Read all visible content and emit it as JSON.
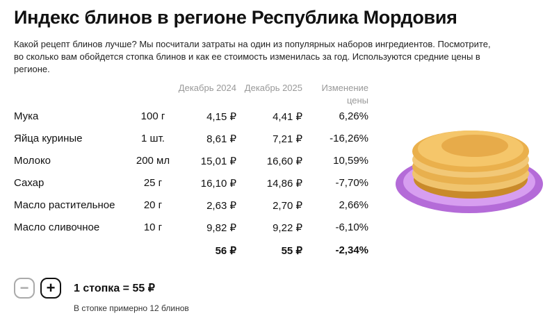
{
  "title": "Индекс блинов в регионе Республика Мордовия",
  "description": "Какой рецепт блинов лучше? Мы посчитали затраты на один из популярных наборов ингредиентов. Посмотрите, во сколько вам обойдется стопка блинов и как ее стоимость изменилась за год. Используются средние цены в регионе.",
  "columns": {
    "dec2024": "Декабрь 2024",
    "dec2025": "Декабрь 2025",
    "change": "Изменение цены"
  },
  "rows": [
    {
      "name": "Мука",
      "qty": "100 г",
      "dec2024": "4,15 ₽",
      "dec2025": "4,41 ₽",
      "change": "6,26%"
    },
    {
      "name": "Яйца куриные",
      "qty": "1 шт.",
      "dec2024": "8,61 ₽",
      "dec2025": "7,21 ₽",
      "change": "-16,26%"
    },
    {
      "name": "Молоко",
      "qty": "200 мл",
      "dec2024": "15,01 ₽",
      "dec2025": "16,60 ₽",
      "change": "10,59%"
    },
    {
      "name": "Сахар",
      "qty": "25 г",
      "dec2024": "16,10 ₽",
      "dec2025": "14,86 ₽",
      "change": "-7,70%"
    },
    {
      "name": "Масло растительное",
      "qty": "20 г",
      "dec2024": "2,63 ₽",
      "dec2025": "2,70 ₽",
      "change": "2,66%"
    },
    {
      "name": "Масло сливочное",
      "qty": "10 г",
      "dec2024": "9,82 ₽",
      "dec2025": "9,22 ₽",
      "change": "-6,10%"
    }
  ],
  "total": {
    "dec2024": "56 ₽",
    "dec2025": "55 ₽",
    "change": "-2,34%"
  },
  "controls": {
    "minus": "−",
    "plus": "+",
    "stack_label": "1 стопка = 55 ₽",
    "note": "В стопке примерно 12 блинов"
  },
  "icons": {
    "pancake": "pancake-stack-image"
  }
}
